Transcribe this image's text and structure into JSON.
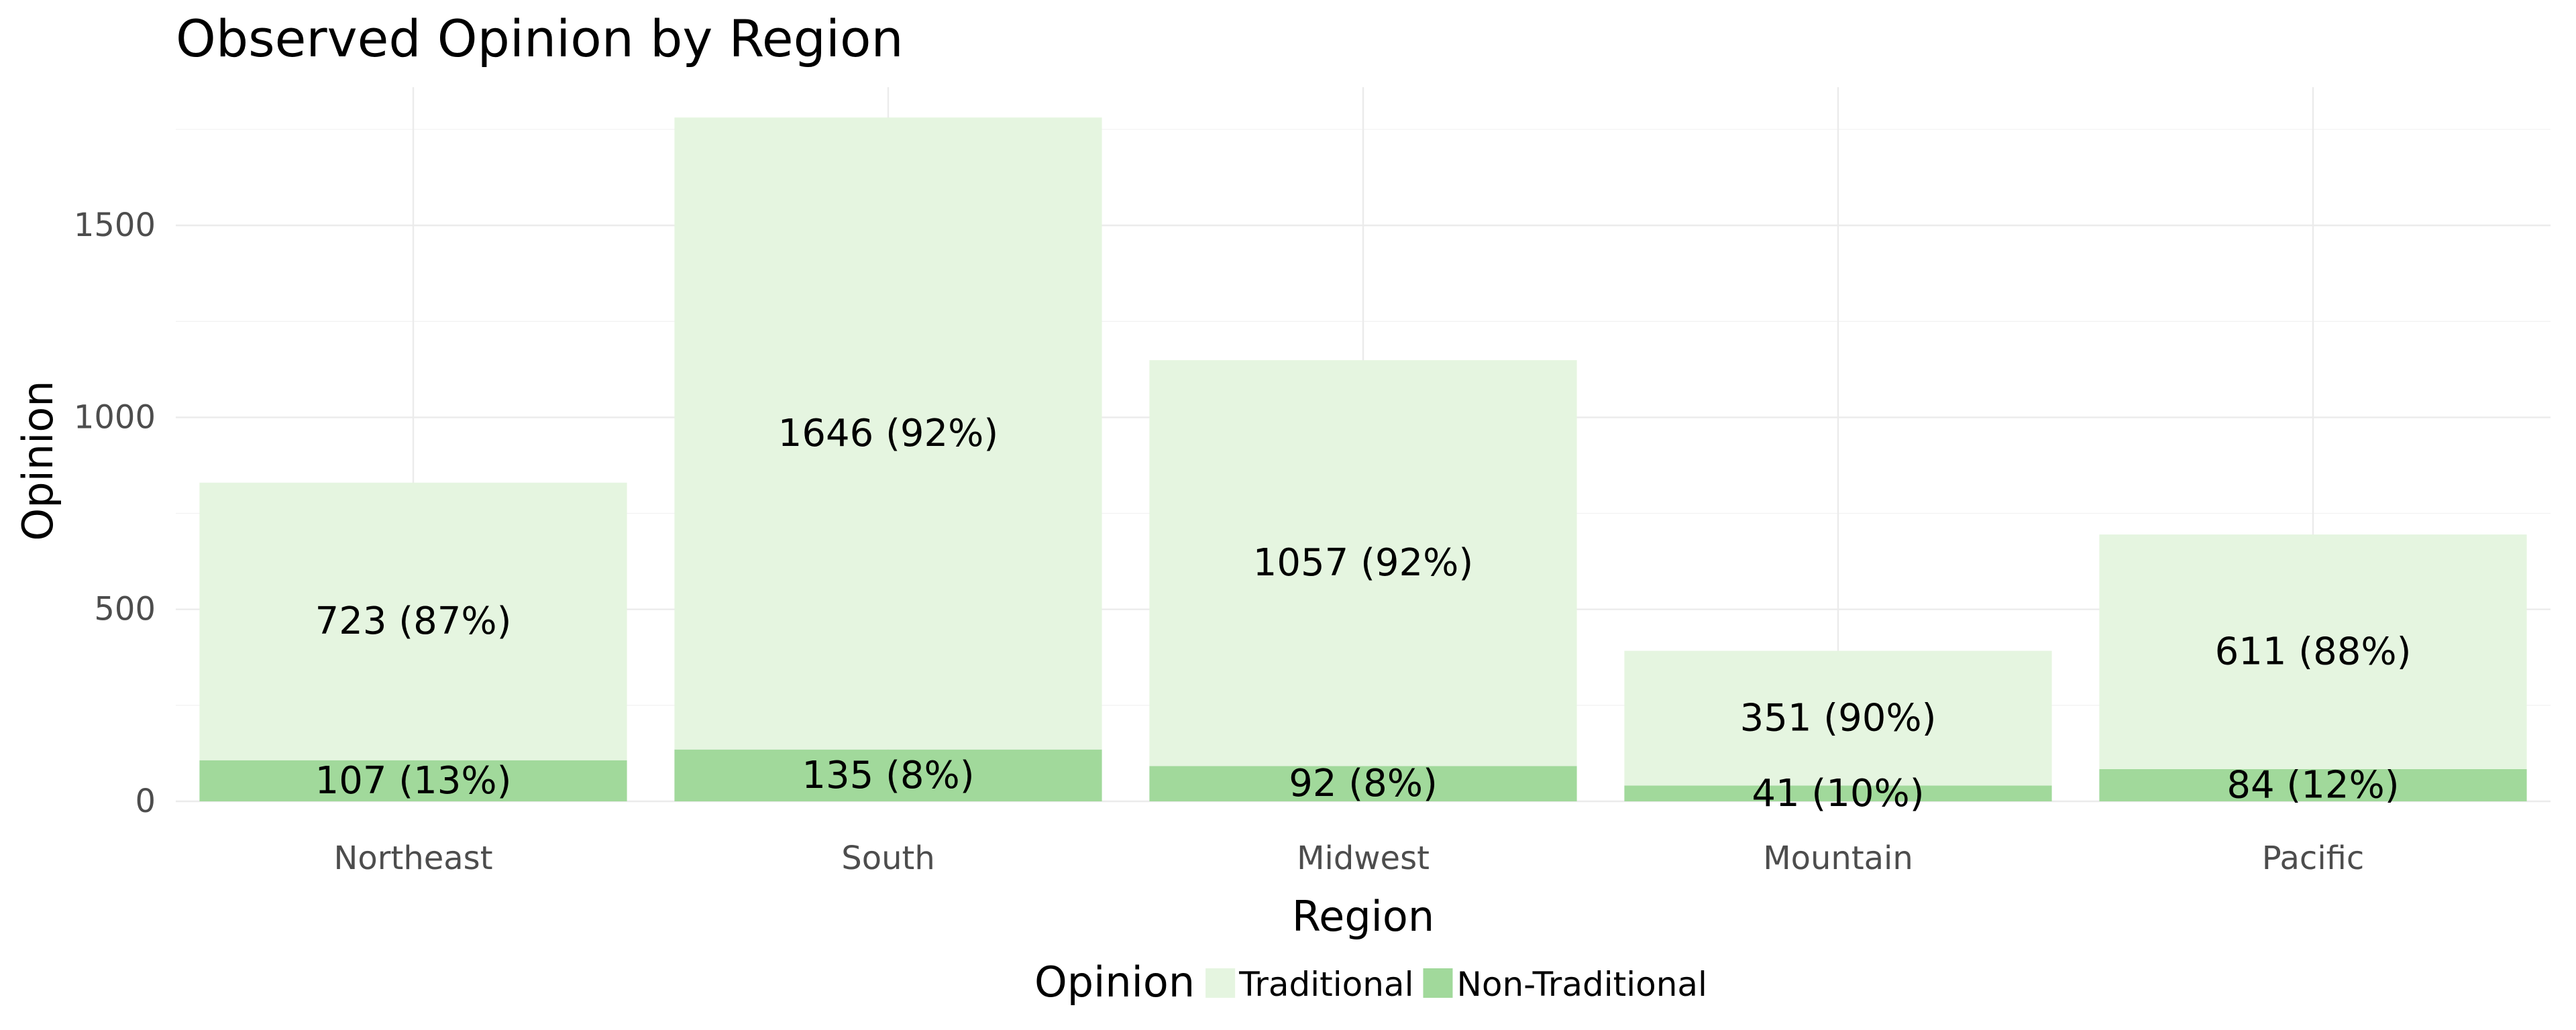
{
  "chart_data": {
    "type": "bar",
    "stacked": true,
    "title": "Observed Opinion by Region",
    "xlabel": "Region",
    "ylabel": "Opinion",
    "ylim": [
      0,
      1860
    ],
    "yticks": [
      0,
      500,
      1000,
      1500
    ],
    "grid": true,
    "legend_position": "bottom",
    "legend_title": "Opinion",
    "categories": [
      "Northeast",
      "South",
      "Midwest",
      "Mountain",
      "Pacific"
    ],
    "series": [
      {
        "name": "Traditional",
        "color": "#e5f5e0",
        "values": [
          723,
          1646,
          1057,
          351,
          611
        ],
        "labels": [
          "723 (87%)",
          "1646 (92%)",
          "1057 (92%)",
          "351 (90%)",
          "611 (88%)"
        ]
      },
      {
        "name": "Non-Traditional",
        "color": "#a1d99b",
        "values": [
          107,
          135,
          92,
          41,
          84
        ],
        "labels": [
          "107 (13%)",
          "135 (8%)",
          "92 (8%)",
          "41 (10%)",
          "84 (12%)"
        ]
      }
    ]
  }
}
